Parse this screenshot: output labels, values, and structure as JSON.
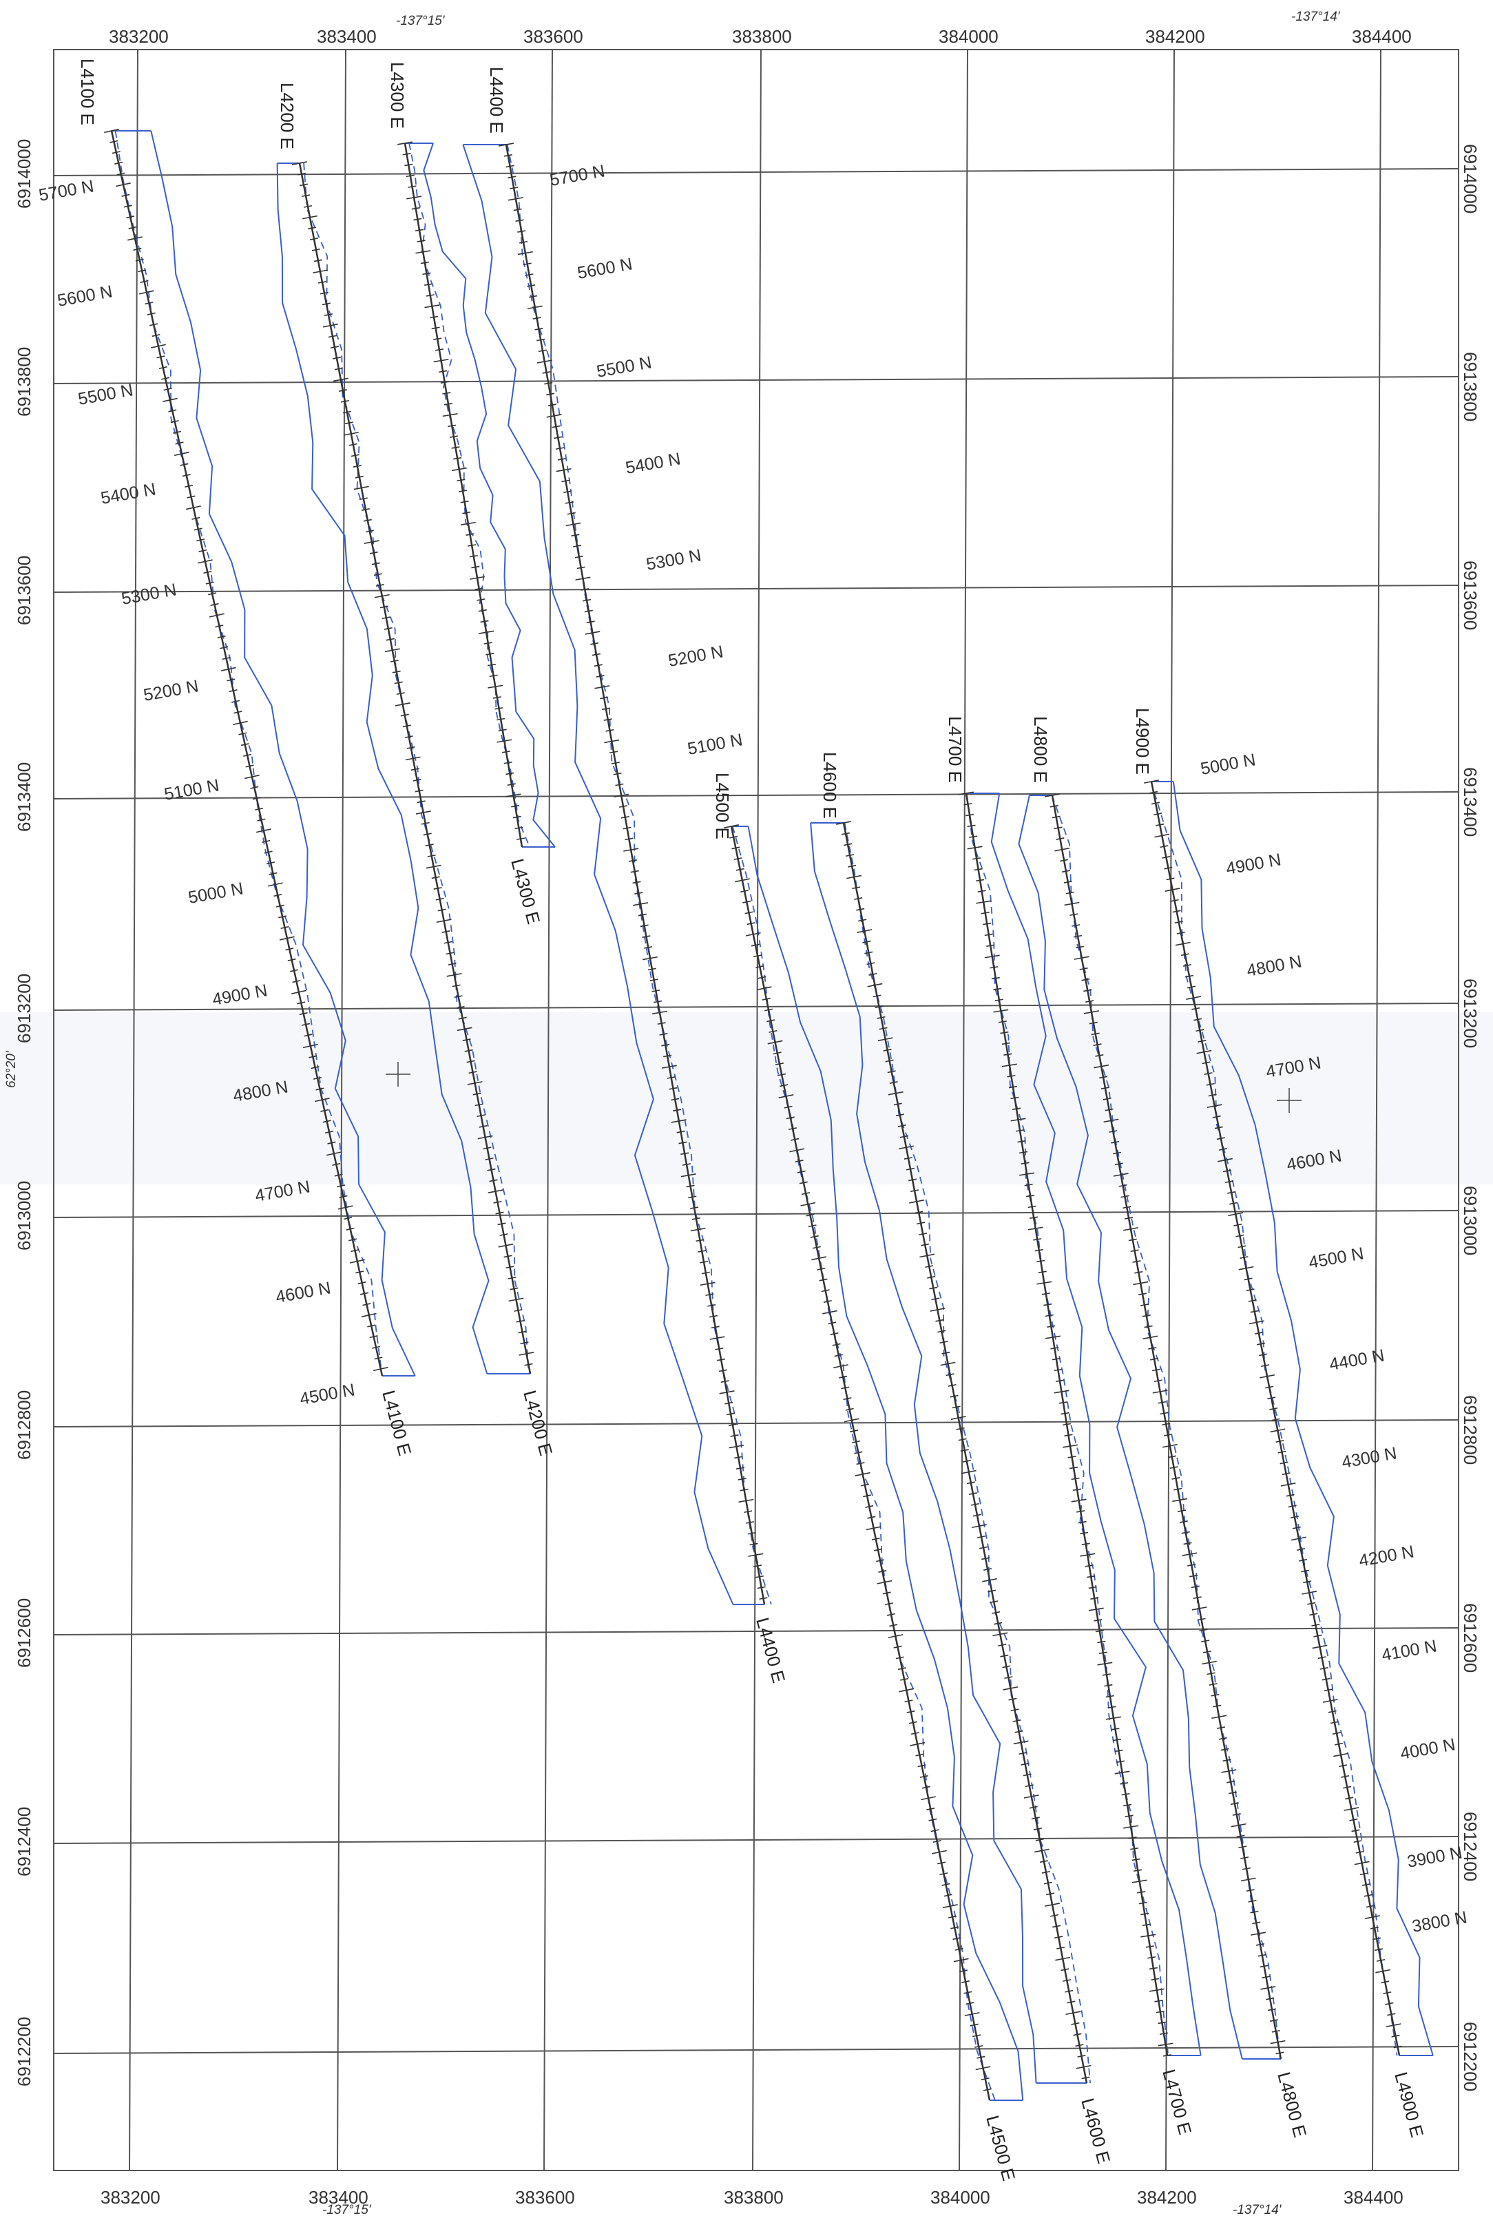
{
  "map": {
    "eastings": [
      "383200",
      "383400",
      "383600",
      "383800",
      "384000",
      "384200",
      "384400"
    ],
    "northings": [
      "6914000",
      "6913800",
      "6913600",
      "6913400",
      "6913200",
      "6913000",
      "6912800",
      "6912600",
      "6912400",
      "6912200"
    ],
    "longitudes_top": [
      "-137°15'",
      "-137°14'"
    ],
    "longitudes_bottom": [
      "-137°15'",
      "-137°14'"
    ],
    "latitude": "62°20'",
    "colors": {
      "line": "#333333",
      "contour": "#3a5fcd",
      "background": "#ffffff",
      "grid": "#555555"
    },
    "lines": [
      {
        "label": "L4100 E",
        "start": "5700 N",
        "end": "4500 N"
      },
      {
        "label": "L4200 E",
        "start": "5700 N",
        "end": "4500 N"
      },
      {
        "label": "L4300 E",
        "start": "5700 N",
        "end": "5100 N"
      },
      {
        "label": "L4400 E",
        "start": "5700 N",
        "end": "3900 N"
      },
      {
        "label": "L4500 E",
        "start": "5000 N",
        "end": "3700 N"
      },
      {
        "label": "L4600 E",
        "start": "5000 N",
        "end": "3700 N"
      },
      {
        "label": "L4700 E",
        "start": "5000 N",
        "end": "3700 N"
      },
      {
        "label": "L4800 E",
        "start": "5000 N",
        "end": "3700 N"
      },
      {
        "label": "L4900 E",
        "start": "5000 N",
        "end": "3700 N"
      }
    ],
    "station_labels": [
      "5700 N",
      "5600 N",
      "5500 N",
      "5400 N",
      "5300 N",
      "5200 N",
      "5100 N",
      "5000 N",
      "4900 N",
      "4800 N",
      "4700 N",
      "4600 N",
      "4500 N",
      "5700 N",
      "5600 N",
      "5500 N",
      "5400 N",
      "5300 N",
      "5200 N",
      "5100 N",
      "5000 N",
      "4900 N",
      "4800 N",
      "4700 N",
      "4600 N",
      "4500 N",
      "4400 N",
      "4300 N",
      "4200 N",
      "4100 N",
      "4000 N",
      "3900 N",
      "3800 N"
    ]
  }
}
